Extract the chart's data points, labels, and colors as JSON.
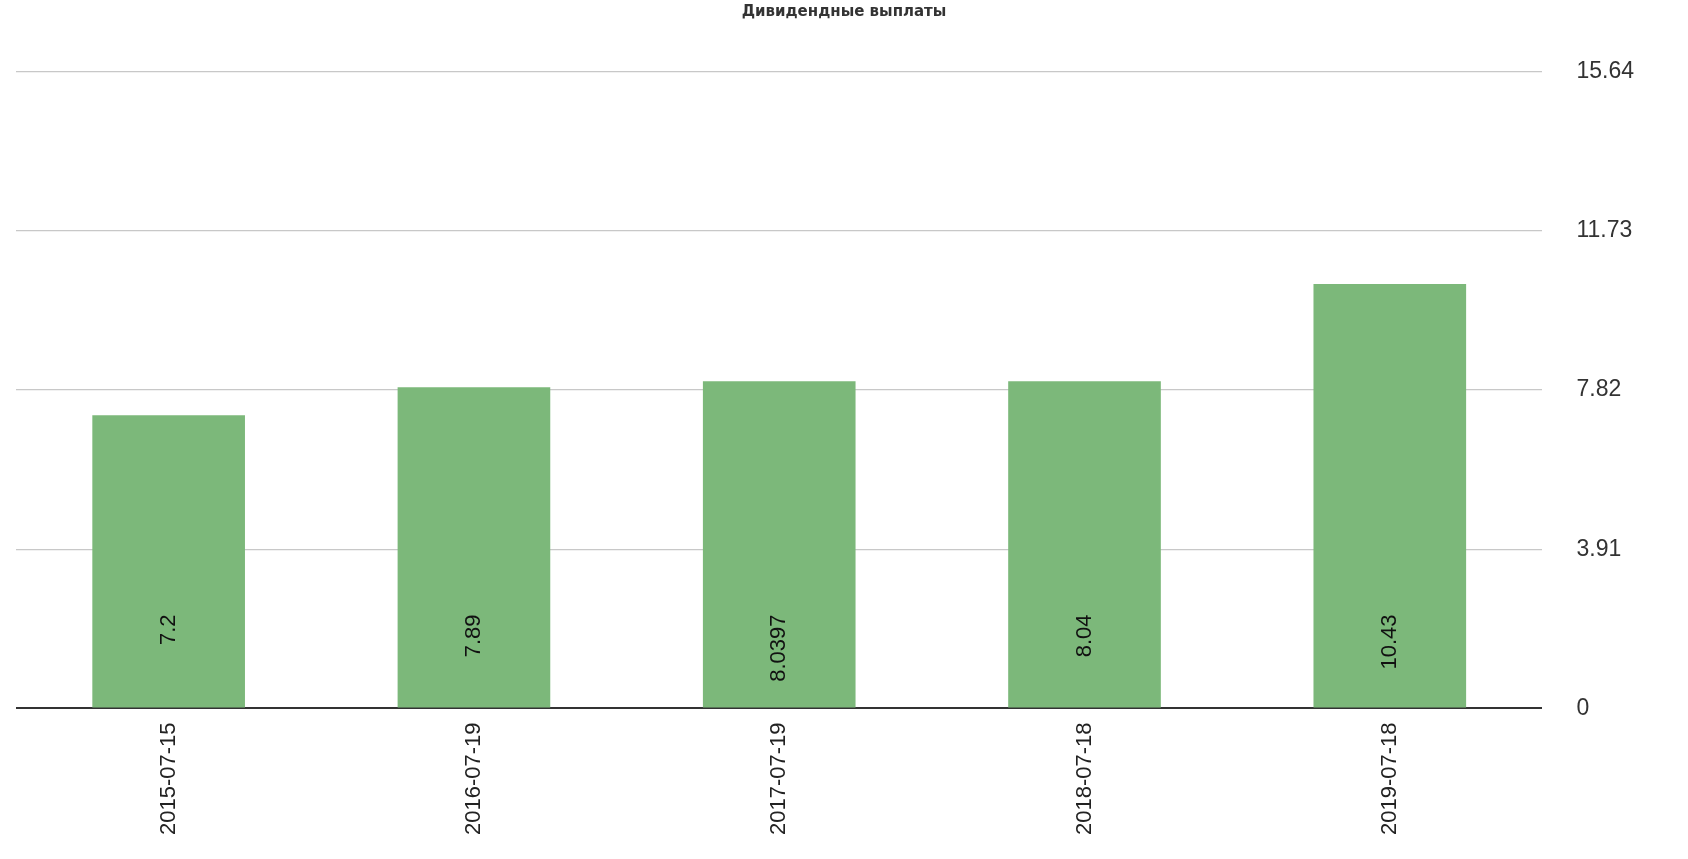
{
  "chart_data": {
    "type": "bar",
    "title": "Дивидендные выплаты",
    "categories": [
      "2015-07-15",
      "2016-07-19",
      "2017-07-19",
      "2018-07-18",
      "2019-07-18"
    ],
    "values": [
      7.2,
      7.89,
      8.0397,
      8.04,
      10.43
    ],
    "color": "#7cb87a",
    "ylim": [
      0,
      15.64
    ],
    "yticks": [
      0,
      3.91,
      7.82,
      11.73,
      15.64
    ],
    "grid": "y",
    "data_labels": true,
    "legend": false
  }
}
